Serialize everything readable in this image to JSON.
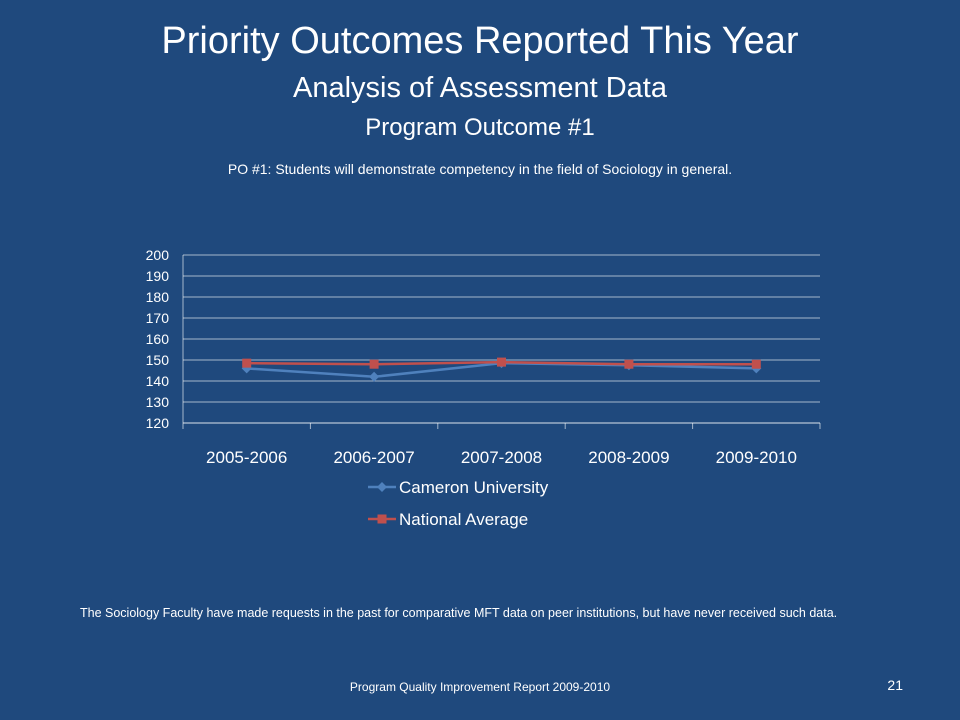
{
  "slide": {
    "title": "Priority Outcomes Reported This Year",
    "subtitle": "Analysis of Assessment  Data",
    "section": "Program Outcome #1",
    "statement": "PO #1: Students will demonstrate competency in the field of Sociology in general.",
    "note": "The Sociology Faculty have made requests in the past for comparative MFT data on peer institutions, but have never received such data.",
    "footer": "Program Quality Improvement Report 2009-2010",
    "page_number": "21"
  },
  "colors": {
    "background": "#1f497d",
    "grid": "#ffffff",
    "cameron": "#4f81bd",
    "national": "#c0504d"
  },
  "chart_data": {
    "type": "line",
    "categories": [
      "2005-2006",
      "2006-2007",
      "2007-2008",
      "2008-2009",
      "2009-2010"
    ],
    "ylim": [
      120,
      200
    ],
    "yticks": [
      120,
      130,
      140,
      150,
      160,
      170,
      180,
      190,
      200
    ],
    "grid": true,
    "legend_position": "bottom",
    "series": [
      {
        "name": "Cameron University",
        "marker": "diamond",
        "color": "#4f81bd",
        "values": [
          146,
          142,
          148.5,
          147.5,
          146
        ]
      },
      {
        "name": "National Average",
        "marker": "square",
        "color": "#c0504d",
        "values": [
          148.5,
          148,
          149,
          148,
          148
        ]
      }
    ]
  }
}
